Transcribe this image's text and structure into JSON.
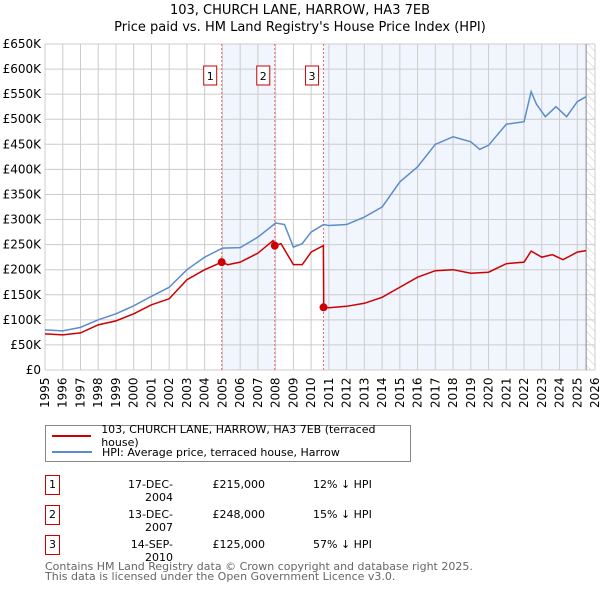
{
  "chart_data": {
    "type": "line",
    "title": "103, CHURCH LANE, HARROW, HA3 7EB",
    "subtitle": "Price paid vs. HM Land Registry's House Price Index (HPI)",
    "xlim": [
      1995,
      2026
    ],
    "ylim": [
      0,
      650000
    ],
    "x_ticks": [
      "1995",
      "1996",
      "1997",
      "1998",
      "1999",
      "2000",
      "2001",
      "2002",
      "2003",
      "2004",
      "2005",
      "2006",
      "2007",
      "2008",
      "2009",
      "2010",
      "2011",
      "2012",
      "2013",
      "2014",
      "2015",
      "2016",
      "2017",
      "2018",
      "2019",
      "2020",
      "2021",
      "2022",
      "2023",
      "2024",
      "2025",
      "2026"
    ],
    "y_ticks": [
      "£0",
      "£50K",
      "£100K",
      "£150K",
      "£200K",
      "£250K",
      "£300K",
      "£350K",
      "£400K",
      "£450K",
      "£500K",
      "£550K",
      "£600K",
      "£650K"
    ],
    "grid": true,
    "shaded_ranges": [
      [
        2004.96,
        2007.95
      ],
      [
        2010.7,
        2025.5
      ]
    ],
    "hatched_from": 2025.5,
    "series": [
      {
        "name": "103, CHURCH LANE, HARROW, HA3 7EB (terraced house)",
        "color": "#cc0000",
        "x": [
          1995,
          1996,
          1997,
          1998,
          1999,
          2000,
          2001,
          2002,
          2003,
          2004,
          2004.96,
          2005.3,
          2006,
          2007,
          2007.85,
          2007.95,
          2008.3,
          2009,
          2009.5,
          2010,
          2010.69,
          2010.71,
          2011,
          2012,
          2013,
          2014,
          2015,
          2016,
          2017,
          2018,
          2019,
          2020,
          2021,
          2022,
          2022.4,
          2023,
          2023.6,
          2024.2,
          2025,
          2025.5
        ],
        "y": [
          72000,
          70000,
          74000,
          90000,
          98000,
          112000,
          130000,
          142000,
          180000,
          200000,
          215000,
          210000,
          215000,
          233000,
          258000,
          248000,
          252000,
          210000,
          210000,
          235000,
          248000,
          125000,
          124000,
          127000,
          133000,
          145000,
          165000,
          185000,
          198000,
          200000,
          193000,
          195000,
          212000,
          215000,
          237000,
          225000,
          230000,
          220000,
          235000,
          238000
        ]
      },
      {
        "name": "HPI: Average price, terraced house, Harrow",
        "color": "#5b8ccc",
        "x": [
          1995,
          1996,
          1997,
          1998,
          1999,
          2000,
          2001,
          2002,
          2003,
          2004,
          2005,
          2006,
          2007,
          2008,
          2008.5,
          2009,
          2009.5,
          2010,
          2010.7,
          2011,
          2012,
          2013,
          2014,
          2015,
          2016,
          2017,
          2018,
          2019,
          2019.5,
          2020,
          2021,
          2022,
          2022.4,
          2022.7,
          2023.2,
          2023.8,
          2024.4,
          2025,
          2025.5
        ],
        "y": [
          80000,
          78000,
          85000,
          100000,
          112000,
          128000,
          147000,
          165000,
          200000,
          225000,
          243000,
          244000,
          265000,
          293000,
          290000,
          245000,
          252000,
          275000,
          290000,
          288000,
          290000,
          305000,
          325000,
          375000,
          405000,
          450000,
          465000,
          455000,
          440000,
          448000,
          490000,
          495000,
          555000,
          530000,
          505000,
          525000,
          505000,
          535000,
          545000
        ]
      }
    ],
    "sales": [
      {
        "label": "1",
        "x": 2004.96,
        "y": 215000,
        "date": "17-DEC-2004",
        "price": "£215,000",
        "hpi": "12% ↓ HPI"
      },
      {
        "label": "2",
        "x": 2007.95,
        "y": 248000,
        "date": "13-DEC-2007",
        "price": "£248,000",
        "hpi": "15% ↓ HPI"
      },
      {
        "label": "3",
        "x": 2010.7,
        "y": 125000,
        "date": "14-SEP-2010",
        "price": "£125,000",
        "hpi": "57% ↓ HPI"
      }
    ],
    "legend": [
      "103, CHURCH LANE, HARROW, HA3 7EB (terraced house)",
      "HPI: Average price, terraced house, Harrow"
    ]
  },
  "footer": {
    "line1": "Contains HM Land Registry data © Crown copyright and database right 2025.",
    "line2": "This data is licensed under the Open Government Licence v3.0."
  }
}
